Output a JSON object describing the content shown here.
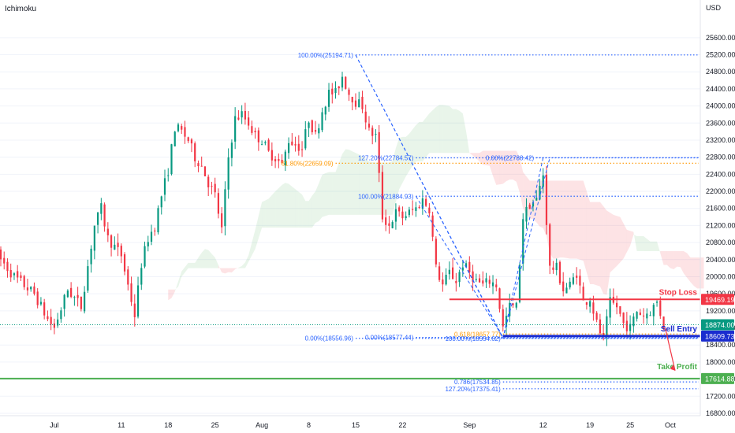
{
  "indicator": "Ichimoku",
  "currency": "USD",
  "chart_data": {
    "type": "candlestick",
    "price_scale": {
      "ylim": [
        16800,
        25800
      ],
      "ticks": [
        25600,
        25200,
        24800,
        24400,
        24000,
        23600,
        23200,
        22800,
        22400,
        22000,
        21600,
        21200,
        20800,
        20400,
        20000,
        19600,
        19200,
        18800,
        18400,
        18000,
        17600,
        17200,
        16800
      ],
      "tick_labels": [
        "25600.00",
        "25200.00",
        "24800.00",
        "24400.00",
        "24000.00",
        "23600.00",
        "23200.00",
        "22800.00",
        "22400.00",
        "22000.00",
        "21600.00",
        "21200.00",
        "20800.00",
        "20400.00",
        "20000.00",
        "19600.00",
        "19200.00",
        "18800.00",
        "18400.00",
        "18000.00",
        "17600.00",
        "17200.00",
        "16800.00"
      ]
    },
    "time_axis": {
      "labels": [
        "Jul",
        "11",
        "18",
        "25",
        "Aug",
        "8",
        "15",
        "22",
        "Sep",
        "12",
        "19",
        "25",
        "Oct"
      ],
      "dates": [
        "2022-07-01",
        "2022-07-11",
        "2022-07-18",
        "2022-07-25",
        "2022-08-01",
        "2022-08-08",
        "2022-08-15",
        "2022-08-22",
        "2022-09-01",
        "2022-09-12",
        "2022-09-19",
        "2022-09-25",
        "2022-10-01"
      ]
    },
    "price_path": [
      [
        "2022-06-22",
        20600
      ],
      [
        "2022-06-25",
        20000
      ],
      [
        "2022-06-28",
        19600
      ],
      [
        "2022-06-30",
        19000
      ],
      [
        "2022-07-01",
        18800
      ],
      [
        "2022-07-03",
        19700
      ],
      [
        "2022-07-05",
        19300
      ],
      [
        "2022-07-07",
        21200
      ],
      [
        "2022-07-08",
        21600
      ],
      [
        "2022-07-09",
        20900
      ],
      [
        "2022-07-11",
        20500
      ],
      [
        "2022-07-12",
        19800
      ],
      [
        "2022-07-13",
        19100
      ],
      [
        "2022-07-14",
        20300
      ],
      [
        "2022-07-15",
        20900
      ],
      [
        "2022-07-16",
        21200
      ],
      [
        "2022-07-17",
        21900
      ],
      [
        "2022-07-18",
        22500
      ],
      [
        "2022-07-19",
        23500
      ],
      [
        "2022-07-20",
        23400
      ],
      [
        "2022-07-21",
        23200
      ],
      [
        "2022-07-22",
        22800
      ],
      [
        "2022-07-23",
        22600
      ],
      [
        "2022-07-24",
        22200
      ],
      [
        "2022-07-25",
        21900
      ],
      [
        "2022-07-26",
        21100
      ],
      [
        "2022-07-27",
        22800
      ],
      [
        "2022-07-28",
        23700
      ],
      [
        "2022-07-29",
        23800
      ],
      [
        "2022-07-30",
        23600
      ],
      [
        "2022-07-31",
        23300
      ],
      [
        "2022-08-01",
        23200
      ],
      [
        "2022-08-02",
        22900
      ],
      [
        "2022-08-03",
        22800
      ],
      [
        "2022-08-04",
        22600
      ],
      [
        "2022-08-05",
        23200
      ],
      [
        "2022-08-06",
        23100
      ],
      [
        "2022-08-07",
        23000
      ],
      [
        "2022-08-08",
        23700
      ],
      [
        "2022-08-09",
        23300
      ],
      [
        "2022-08-10",
        23900
      ],
      [
        "2022-08-11",
        24300
      ],
      [
        "2022-08-12",
        24300
      ],
      [
        "2022-08-13",
        24700
      ],
      [
        "2022-08-14",
        24300
      ],
      [
        "2022-08-15",
        24100
      ],
      [
        "2022-08-16",
        24000
      ],
      [
        "2022-08-17",
        23400
      ],
      [
        "2022-08-18",
        23300
      ],
      [
        "2022-08-19",
        21400
      ],
      [
        "2022-08-20",
        21200
      ],
      [
        "2022-08-21",
        21500
      ],
      [
        "2022-08-22",
        21400
      ],
      [
        "2022-08-23",
        21500
      ],
      [
        "2022-08-24",
        21600
      ],
      [
        "2022-08-25",
        21800
      ],
      [
        "2022-08-26",
        21600
      ],
      [
        "2022-08-27",
        20200
      ],
      [
        "2022-08-28",
        19800
      ],
      [
        "2022-08-29",
        20100
      ],
      [
        "2022-08-30",
        19900
      ],
      [
        "2022-08-31",
        20300
      ],
      [
        "2022-09-01",
        20100
      ],
      [
        "2022-09-02",
        19900
      ],
      [
        "2022-09-03",
        19800
      ],
      [
        "2022-09-04",
        19900
      ],
      [
        "2022-09-05",
        19800
      ],
      [
        "2022-09-06",
        18800
      ],
      [
        "2022-09-07",
        19300
      ],
      [
        "2022-09-08",
        19300
      ],
      [
        "2022-09-09",
        21400
      ],
      [
        "2022-09-10",
        21700
      ],
      [
        "2022-09-11",
        21800
      ],
      [
        "2022-09-12",
        22400
      ],
      [
        "2022-09-13",
        20200
      ],
      [
        "2022-09-14",
        20200
      ],
      [
        "2022-09-15",
        19700
      ],
      [
        "2022-09-16",
        19800
      ],
      [
        "2022-09-17",
        20100
      ],
      [
        "2022-09-18",
        19400
      ],
      [
        "2022-09-19",
        19500
      ],
      [
        "2022-09-20",
        18900
      ],
      [
        "2022-09-21",
        18500
      ],
      [
        "2022-09-22",
        19400
      ],
      [
        "2022-09-23",
        19300
      ],
      [
        "2022-09-24",
        18900
      ],
      [
        "2022-09-25",
        18800
      ],
      [
        "2022-09-26",
        19200
      ],
      [
        "2022-09-27",
        19100
      ],
      [
        "2022-09-28",
        19200
      ],
      [
        "2022-09-29",
        19400
      ],
      [
        "2022-09-30",
        18874
      ]
    ],
    "cloud_note": "Ichimoku cloud shaded green (bullish) and red (bearish)",
    "current_price": {
      "value": 18874.0,
      "label": "18874.00",
      "color": "#089981"
    },
    "levels": [
      {
        "name": "Stop Loss",
        "value": 19469.19,
        "label": "19469.19",
        "color": "#f23645"
      },
      {
        "name": "Sell Entry",
        "value": 18609.73,
        "label": "18609.73",
        "color": "#1a2ccf"
      },
      {
        "name": "Take Profit",
        "value": 17614.88,
        "label": "17614.88",
        "color": "#4caf50"
      }
    ],
    "fib_levels": [
      {
        "label": "100.00%(25194.71)",
        "value": 25194.71,
        "color": "#2962ff"
      },
      {
        "label": "127.20%(22784.57)",
        "value": 22784.57,
        "color": "#2962ff"
      },
      {
        "label": "0.00%(22788.42)",
        "value": 22788.42,
        "color": "#2962ff"
      },
      {
        "label": "61.80%(22659.09)",
        "value": 22659.09,
        "color": "#ff9800"
      },
      {
        "label": "100.00%(21884.93)",
        "value": 21884.93,
        "color": "#2962ff"
      },
      {
        "label": "0.618(18657.77)",
        "value": 18657.77,
        "color": "#ff9800"
      },
      {
        "label": "0.00%(18556.96)",
        "value": 18556.96,
        "color": "#2962ff"
      },
      {
        "label": "0.00%(18577.44)",
        "value": 18577.44,
        "color": "#2962ff"
      },
      {
        "label": "100.00%(18554.62)",
        "value": 18554.62,
        "color": "#2962ff"
      },
      {
        "label": "0.786(17534.85)",
        "value": 17534.85,
        "color": "#2962ff"
      },
      {
        "label": "127.20%(17375.41)",
        "value": 17375.41,
        "color": "#2962ff"
      }
    ],
    "trend_lines": [
      {
        "from": [
          "2022-08-15",
          25194.71
        ],
        "to": [
          "2022-09-06",
          18556.96
        ]
      },
      {
        "from": [
          "2022-08-15",
          25194.71
        ],
        "to": [
          "2022-09-06",
          18577.44
        ]
      },
      {
        "from": [
          "2022-08-24",
          21884.93
        ],
        "to": [
          "2022-09-06",
          18577.44
        ]
      },
      {
        "from": [
          "2022-09-06",
          18554.62
        ],
        "to": [
          "2022-09-12",
          22788.42
        ]
      },
      {
        "from": [
          "2022-09-06",
          18554.62
        ],
        "to": [
          "2022-09-13",
          22788.42
        ]
      }
    ],
    "projection": {
      "from": [
        "2022-09-30",
        18874
      ],
      "to": [
        "2022-10-01",
        17800
      ],
      "color": "#f23645"
    },
    "colors": {
      "up": "#089981",
      "down": "#f23645",
      "grid": "#f0f3fa"
    }
  }
}
